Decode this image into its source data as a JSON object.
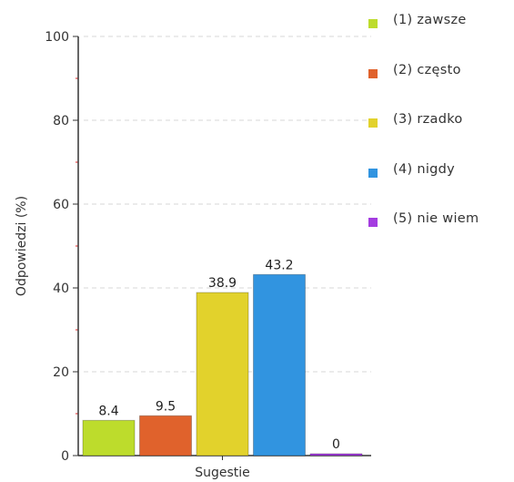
{
  "chart_data": {
    "type": "bar",
    "title": "",
    "xlabel": "Sugestie",
    "ylabel": "Odpowiedzi (%)",
    "ylim": [
      0,
      100
    ],
    "yticks": [
      0,
      20,
      40,
      60,
      80,
      100
    ],
    "grid": true,
    "legend_position": "right",
    "categories": [
      "Sugestie"
    ],
    "series": [
      {
        "name": "(1) zawsze",
        "values": [
          8.4
        ],
        "color": "#bddc2c"
      },
      {
        "name": "(2) często",
        "values": [
          9.5
        ],
        "color": "#e0622c"
      },
      {
        "name": "(3) rzadko",
        "values": [
          38.9
        ],
        "color": "#e2d22c"
      },
      {
        "name": "(4) nigdy",
        "values": [
          43.2
        ],
        "color": "#3194e0"
      },
      {
        "name": "(5) nie wiem",
        "values": [
          0
        ],
        "color": "#a43ce0"
      }
    ]
  }
}
